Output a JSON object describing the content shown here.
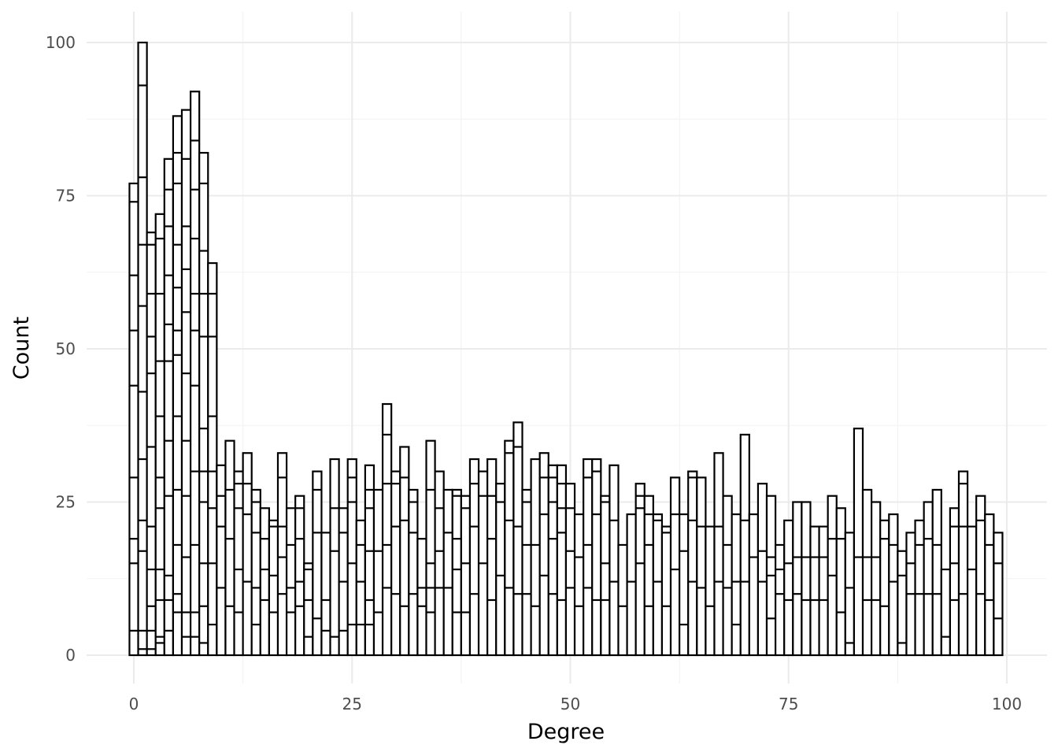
{
  "chart_data": {
    "type": "bar",
    "title": "",
    "xlabel": "Degree",
    "ylabel": "Count",
    "xlim": [
      -5,
      100
    ],
    "ylim": [
      0,
      105
    ],
    "x_ticks": [
      0,
      25,
      50,
      75,
      100
    ],
    "x_tick_labels": [
      "0",
      "25",
      "50",
      "75",
      "100"
    ],
    "y_ticks": [
      0,
      25,
      50,
      75,
      100
    ],
    "y_tick_labels": [
      "0",
      "25",
      "50",
      "75",
      "100"
    ],
    "grid": true,
    "legend": "none",
    "stacked": true,
    "bar_fill": "#ffffff",
    "bar_outline": "#000000",
    "x": [
      0,
      1,
      2,
      3,
      4,
      5,
      6,
      7,
      8,
      9,
      10,
      11,
      12,
      13,
      14,
      15,
      16,
      17,
      18,
      19,
      20,
      21,
      22,
      23,
      24,
      25,
      26,
      27,
      28,
      29,
      30,
      31,
      32,
      33,
      34,
      35,
      36,
      37,
      38,
      39,
      40,
      41,
      42,
      43,
      44,
      45,
      46,
      47,
      48,
      49,
      50,
      51,
      52,
      53,
      54,
      55,
      56,
      57,
      58,
      59,
      60,
      61,
      62,
      63,
      64,
      65,
      66,
      67,
      68,
      69,
      70,
      71,
      72,
      73,
      74,
      75,
      76,
      77,
      78,
      79,
      80,
      81,
      82,
      83,
      84,
      85,
      86,
      87,
      88,
      89,
      90,
      91,
      92,
      93,
      94,
      95,
      96,
      97,
      98,
      99
    ],
    "values": [
      77,
      100,
      69,
      72,
      81,
      88,
      89,
      92,
      82,
      64,
      31,
      35,
      30,
      33,
      27,
      24,
      22,
      33,
      24,
      26,
      15,
      30,
      20,
      32,
      24,
      32,
      22,
      31,
      27,
      41,
      30,
      34,
      27,
      19,
      35,
      30,
      27,
      27,
      26,
      32,
      30,
      32,
      28,
      35,
      38,
      27,
      32,
      33,
      31,
      31,
      28,
      23,
      32,
      32,
      26,
      31,
      18,
      23,
      28,
      26,
      23,
      21,
      29,
      23,
      30,
      29,
      21,
      33,
      26,
      23,
      36,
      23,
      28,
      26,
      18,
      22,
      25,
      25,
      21,
      21,
      26,
      24,
      20,
      37,
      27,
      25,
      22,
      23,
      17,
      20,
      22,
      25,
      27,
      14,
      24,
      30,
      21,
      26,
      23,
      20
    ],
    "segments": [
      [
        4,
        15,
        19,
        29,
        44,
        53,
        62,
        74,
        77
      ],
      [
        1,
        4,
        17,
        22,
        32,
        43,
        57,
        67,
        78,
        93,
        100
      ],
      [
        1,
        4,
        8,
        14,
        21,
        34,
        46,
        52,
        59,
        67,
        69
      ],
      [
        2,
        3,
        9,
        14,
        24,
        29,
        39,
        48,
        59,
        68,
        72
      ],
      [
        4,
        9,
        13,
        26,
        35,
        48,
        54,
        62,
        70,
        76,
        81
      ],
      [
        7,
        10,
        18,
        27,
        39,
        49,
        53,
        60,
        67,
        77,
        82,
        88
      ],
      [
        3,
        7,
        16,
        26,
        35,
        46,
        56,
        63,
        70,
        81,
        89
      ],
      [
        3,
        7,
        18,
        30,
        44,
        53,
        59,
        68,
        76,
        84,
        92
      ],
      [
        2,
        8,
        15,
        25,
        30,
        37,
        52,
        59,
        66,
        77,
        82
      ],
      [
        5,
        15,
        24,
        30,
        39,
        52,
        59,
        64
      ],
      [
        11,
        21,
        26,
        31
      ],
      [
        8,
        19,
        27,
        35
      ],
      [
        7,
        14,
        24,
        28,
        30
      ],
      [
        12,
        23,
        28,
        33
      ],
      [
        5,
        11,
        20,
        25,
        27
      ],
      [
        9,
        14,
        19,
        24
      ],
      [
        7,
        13,
        21,
        22
      ],
      [
        10,
        16,
        21,
        29,
        33
      ],
      [
        7,
        11,
        18,
        24
      ],
      [
        8,
        12,
        19,
        24,
        26
      ],
      [
        3,
        9,
        14,
        15
      ],
      [
        6,
        20,
        27,
        30
      ],
      [
        4,
        9,
        20
      ],
      [
        3,
        17,
        24,
        32
      ],
      [
        4,
        12,
        20,
        24
      ],
      [
        5,
        15,
        25,
        29,
        32
      ],
      [
        5,
        12,
        18,
        22
      ],
      [
        5,
        9,
        17,
        24,
        27,
        31
      ],
      [
        7,
        17,
        27
      ],
      [
        11,
        18,
        28,
        36,
        41
      ],
      [
        10,
        21,
        28,
        30
      ],
      [
        8,
        22,
        29,
        34
      ],
      [
        10,
        20,
        25,
        27
      ],
      [
        8,
        11,
        19
      ],
      [
        7,
        11,
        15,
        27,
        35
      ],
      [
        11,
        17,
        24,
        30
      ],
      [
        11,
        20,
        27
      ],
      [
        7,
        14,
        19,
        26,
        27
      ],
      [
        7,
        15,
        24,
        26
      ],
      [
        10,
        21,
        28,
        32
      ],
      [
        15,
        26,
        30
      ],
      [
        9,
        19,
        26,
        32
      ],
      [
        13,
        25,
        28
      ],
      [
        11,
        22,
        33,
        35
      ],
      [
        10,
        21,
        34,
        38
      ],
      [
        10,
        18,
        25,
        27
      ],
      [
        8,
        18,
        32
      ],
      [
        13,
        23,
        29,
        33
      ],
      [
        10,
        19,
        25,
        29,
        31
      ],
      [
        9,
        20,
        24,
        28,
        31
      ],
      [
        11,
        17,
        24,
        28
      ],
      [
        8,
        16,
        23
      ],
      [
        11,
        18,
        29,
        32
      ],
      [
        9,
        23,
        30,
        32
      ],
      [
        9,
        15,
        25,
        26
      ],
      [
        12,
        22,
        31
      ],
      [
        8,
        18
      ],
      [
        12,
        23
      ],
      [
        15,
        24,
        26,
        28
      ],
      [
        8,
        18,
        23,
        26
      ],
      [
        12,
        22,
        23
      ],
      [
        8,
        20,
        21
      ],
      [
        14,
        23,
        29
      ],
      [
        5,
        17,
        23
      ],
      [
        12,
        22,
        29,
        30
      ],
      [
        11,
        21,
        29
      ],
      [
        8,
        21
      ],
      [
        12,
        21,
        33
      ],
      [
        11,
        18,
        26
      ],
      [
        5,
        12,
        23
      ],
      [
        12,
        22,
        36
      ],
      [
        16,
        23
      ],
      [
        12,
        17,
        28
      ],
      [
        6,
        13,
        16,
        26
      ],
      [
        10,
        14,
        18
      ],
      [
        9,
        15,
        22
      ],
      [
        10,
        16,
        25
      ],
      [
        9,
        16,
        25
      ],
      [
        9,
        16,
        21
      ],
      [
        9,
        16,
        21
      ],
      [
        13,
        19,
        26
      ],
      [
        7,
        19,
        24
      ],
      [
        2,
        11,
        20
      ],
      [
        16,
        37
      ],
      [
        9,
        16,
        27
      ],
      [
        9,
        16,
        25
      ],
      [
        8,
        19,
        22
      ],
      [
        12,
        18,
        23
      ],
      [
        2,
        13,
        17
      ],
      [
        10,
        15,
        20
      ],
      [
        10,
        18,
        22
      ],
      [
        10,
        19,
        25
      ],
      [
        10,
        18,
        27
      ],
      [
        3,
        14
      ],
      [
        9,
        15,
        21,
        24
      ],
      [
        10,
        21,
        28,
        30
      ],
      [
        14,
        21
      ],
      [
        10,
        22,
        26
      ],
      [
        9,
        18,
        23
      ],
      [
        6,
        15,
        20
      ]
    ]
  }
}
